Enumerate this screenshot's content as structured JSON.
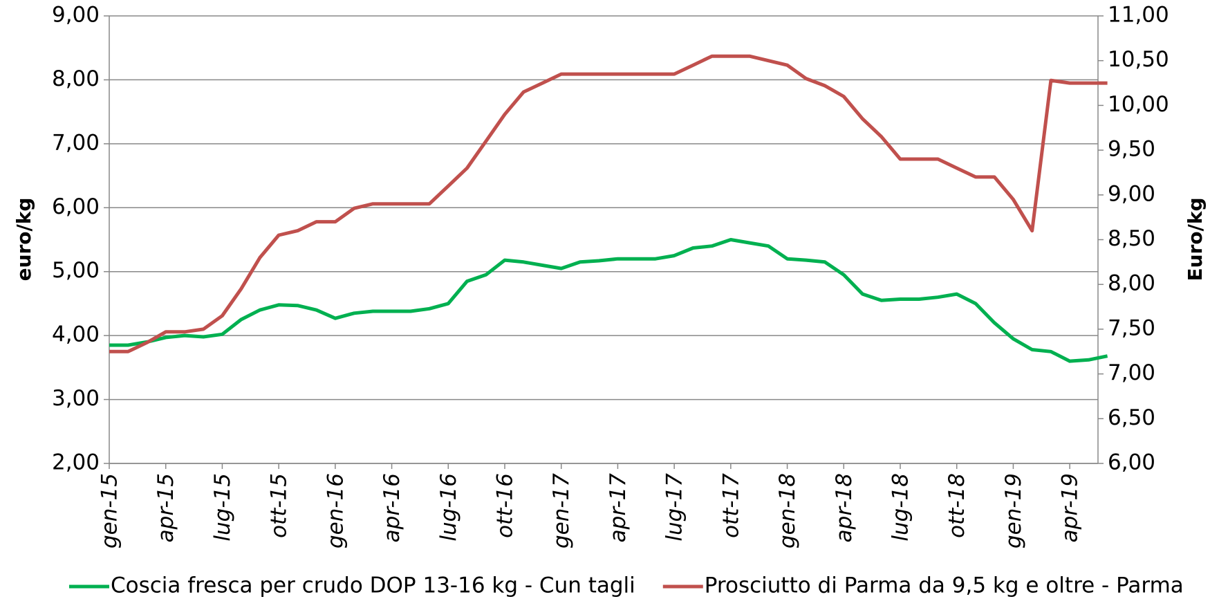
{
  "chart_data": {
    "type": "line",
    "categories": [
      "gen-15",
      null,
      null,
      "apr-15",
      null,
      null,
      "lug-15",
      null,
      null,
      "ott-15",
      null,
      null,
      "gen-16",
      null,
      null,
      "apr-16",
      null,
      null,
      "lug-16",
      null,
      null,
      "ott-16",
      null,
      null,
      "gen-17",
      null,
      null,
      "apr-17",
      null,
      null,
      "lug-17",
      null,
      null,
      "ott-17",
      null,
      null,
      "gen-18",
      null,
      null,
      "apr-18",
      null,
      null,
      "lug-18",
      null,
      null,
      "ott-18",
      null,
      null,
      "gen-19",
      null,
      null,
      "apr-19",
      null,
      null
    ],
    "series": [
      {
        "name": "Coscia fresca per crudo DOP 13-16 kg - Cun tagli",
        "color": "#00b050",
        "values": [
          3.85,
          3.85,
          3.9,
          3.97,
          4.0,
          3.98,
          4.02,
          4.25,
          4.4,
          4.48,
          4.47,
          4.4,
          4.27,
          4.35,
          4.38,
          4.38,
          4.38,
          4.42,
          4.5,
          4.85,
          4.95,
          5.18,
          5.15,
          5.1,
          5.05,
          5.15,
          5.17,
          5.2,
          5.2,
          5.2,
          5.25,
          5.37,
          5.4,
          5.5,
          5.45,
          5.4,
          5.2,
          5.18,
          5.15,
          4.95,
          4.65,
          4.55,
          4.57,
          4.57,
          4.6,
          4.65,
          4.5,
          4.2,
          3.95,
          3.78,
          3.75,
          3.6,
          3.62,
          3.68
        ]
      },
      {
        "name": "Prosciutto di Parma da 9,5 kg e oltre - Parma",
        "color": "#c0504d",
        "axis": "y2",
        "values": [
          7.25,
          7.25,
          7.35,
          7.47,
          7.47,
          7.5,
          7.65,
          7.95,
          8.3,
          8.55,
          8.6,
          8.7,
          8.7,
          8.85,
          8.9,
          8.9,
          8.9,
          8.9,
          9.1,
          9.3,
          9.6,
          9.9,
          10.15,
          10.25,
          10.35,
          10.35,
          10.35,
          10.35,
          10.35,
          10.35,
          10.35,
          10.45,
          10.55,
          10.55,
          10.55,
          10.5,
          10.45,
          10.3,
          10.22,
          10.1,
          9.85,
          9.65,
          9.4,
          9.4,
          9.4,
          9.3,
          9.2,
          9.2,
          8.95,
          8.6,
          10.28,
          10.25,
          10.25,
          10.25
        ]
      }
    ],
    "ylabel": "euro/kg",
    "y2label": "Euro/kg",
    "ylim": [
      2,
      9
    ],
    "yticks": [
      {
        "value": 2,
        "label": "2,00"
      },
      {
        "value": 3,
        "label": "3,00"
      },
      {
        "value": 4,
        "label": "4,00"
      },
      {
        "value": 5,
        "label": "5,00"
      },
      {
        "value": 6,
        "label": "6,00"
      },
      {
        "value": 7,
        "label": "7,00"
      },
      {
        "value": 8,
        "label": "8,00"
      },
      {
        "value": 9,
        "label": "9,00"
      }
    ],
    "y2lim": [
      6,
      11
    ],
    "y2ticks": [
      {
        "value": 6,
        "label": "6,00"
      },
      {
        "value": 6.5,
        "label": "6,50"
      },
      {
        "value": 7,
        "label": "7,00"
      },
      {
        "value": 7.5,
        "label": "7,50"
      },
      {
        "value": 8,
        "label": "8,00"
      },
      {
        "value": 8.5,
        "label": "8,50"
      },
      {
        "value": 9,
        "label": "9,00"
      },
      {
        "value": 9.5,
        "label": "9,50"
      },
      {
        "value": 10,
        "label": "10,00"
      },
      {
        "value": 10.5,
        "label": "10,50"
      },
      {
        "value": 11,
        "label": "11,00"
      }
    ],
    "grid": true,
    "legend": "bottom"
  }
}
